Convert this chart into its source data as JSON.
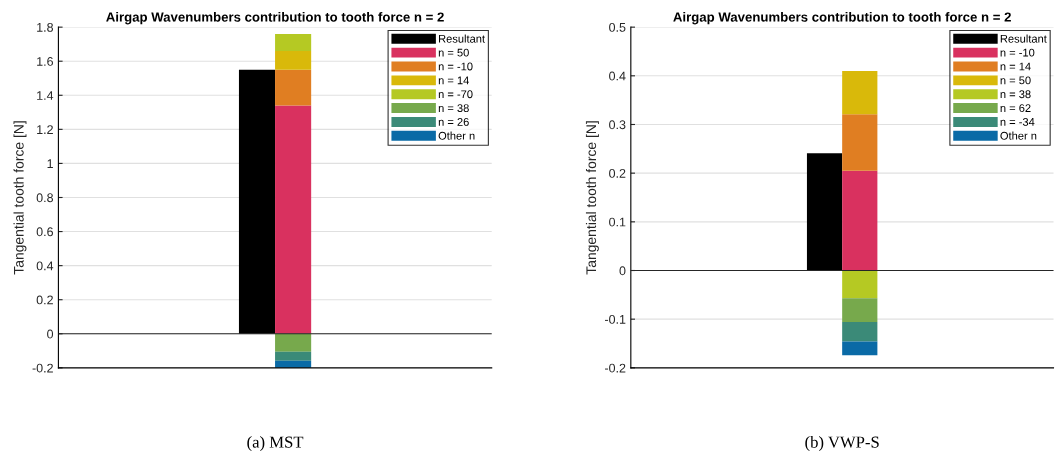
{
  "chart_data": [
    {
      "type": "bar",
      "title": "Airgap Wavenumbers contribution to tooth force n = 2",
      "ylabel": "Tangential tooth force [N]",
      "stacked": true,
      "grid": "y",
      "legend": "top right",
      "tick_labels": "y",
      "annotations": [
        "(a) MST"
      ],
      "categories": [
        null,
        null,
        null,
        null,
        null,
        null,
        null,
        null,
        null,
        null,
        null,
        null
      ],
      "ylim": [
        -0.2,
        1.8
      ],
      "yticks": [
        -0.2,
        0,
        0.2,
        0.4,
        0.6,
        0.8,
        1,
        1.2,
        1.4,
        1.6,
        1.8
      ],
      "series": [
        {
          "name": "Resultant",
          "color": "#000000",
          "values": [
            0,
            0,
            0,
            0,
            0,
            1.55,
            null,
            0,
            0,
            0,
            0,
            0
          ]
        },
        {
          "name": "n = 50",
          "color": "#d9315f",
          "values": [
            null,
            null,
            null,
            null,
            null,
            null,
            1.34,
            null,
            null,
            null,
            null,
            null
          ]
        },
        {
          "name": "n = -10",
          "color": "#e07e22",
          "values": [
            null,
            null,
            null,
            null,
            null,
            null,
            0.21,
            null,
            null,
            null,
            null,
            null
          ]
        },
        {
          "name": "n = 14",
          "color": "#d9b90a",
          "values": [
            null,
            null,
            null,
            null,
            null,
            null,
            0.11,
            null,
            null,
            null,
            null,
            null
          ]
        },
        {
          "name": "n = -70",
          "color": "#b5c923",
          "values": [
            null,
            null,
            null,
            null,
            null,
            null,
            0.1,
            null,
            null,
            null,
            null,
            null
          ]
        },
        {
          "name": "n = 38",
          "color": "#77a94c",
          "values": [
            null,
            null,
            null,
            null,
            null,
            null,
            -0.106,
            null,
            null,
            null,
            null,
            null
          ]
        },
        {
          "name": "n = 26",
          "color": "#3b8a78",
          "values": [
            null,
            null,
            null,
            null,
            null,
            null,
            -0.053,
            null,
            null,
            null,
            null,
            null
          ]
        },
        {
          "name": "Other n",
          "color": "#0a6aa6",
          "values": [
            null,
            null,
            null,
            null,
            null,
            null,
            -0.045,
            null,
            null,
            null,
            null,
            null
          ]
        }
      ]
    },
    {
      "type": "bar",
      "title": "Airgap Wavenumbers contribution to tooth force n = 2",
      "ylabel": "Tangential tooth force [N]",
      "stacked": true,
      "grid": "y",
      "legend": "top right",
      "tick_labels": "y",
      "annotations": [
        "(b) VWP-S"
      ],
      "categories": [
        null,
        null,
        null,
        null,
        null,
        null,
        null,
        null,
        null,
        null,
        null,
        null
      ],
      "ylim": [
        -0.2,
        0.5
      ],
      "yticks": [
        -0.2,
        -0.1,
        0,
        0.1,
        0.2,
        0.3,
        0.4,
        0.5
      ],
      "series": [
        {
          "name": "Resultant",
          "color": "#000000",
          "values": [
            0,
            0,
            0,
            0,
            0,
            0.241,
            null,
            0,
            0,
            0,
            0,
            0
          ]
        },
        {
          "name": "n = -10",
          "color": "#d9315f",
          "values": [
            null,
            null,
            null,
            null,
            null,
            null,
            0.205,
            null,
            null,
            null,
            null,
            null
          ]
        },
        {
          "name": "n = 14",
          "color": "#e07e22",
          "values": [
            null,
            null,
            null,
            null,
            null,
            null,
            0.116,
            null,
            null,
            null,
            null,
            null
          ]
        },
        {
          "name": "n = 50",
          "color": "#d9b90a",
          "values": [
            null,
            null,
            null,
            null,
            null,
            null,
            0.089,
            null,
            null,
            null,
            null,
            null
          ]
        },
        {
          "name": "n = 38",
          "color": "#b5c923",
          "values": [
            null,
            null,
            null,
            null,
            null,
            null,
            -0.057,
            null,
            null,
            null,
            null,
            null
          ]
        },
        {
          "name": "n = 62",
          "color": "#77a94c",
          "values": [
            null,
            null,
            null,
            null,
            null,
            null,
            -0.049,
            null,
            null,
            null,
            null,
            null
          ]
        },
        {
          "name": "n = -34",
          "color": "#3b8a78",
          "values": [
            null,
            null,
            null,
            null,
            null,
            null,
            -0.04,
            null,
            null,
            null,
            null,
            null
          ]
        },
        {
          "name": "Other n",
          "color": "#0a6aa6",
          "values": [
            null,
            null,
            null,
            null,
            null,
            null,
            -0.028,
            null,
            null,
            null,
            null,
            null
          ]
        }
      ]
    }
  ]
}
